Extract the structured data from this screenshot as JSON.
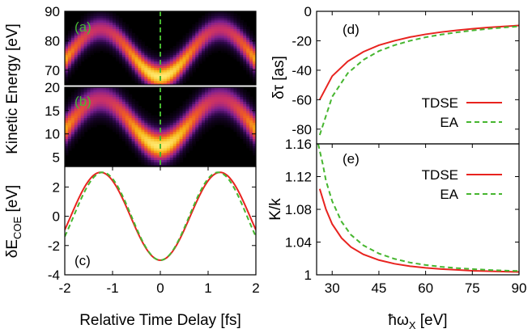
{
  "chart_data": [
    {
      "id": "a",
      "type": "heatmap",
      "panel_label": "(a)",
      "xlim": [
        -2,
        2
      ],
      "ylim": [
        65,
        90
      ],
      "yticks": [
        70,
        80,
        90
      ],
      "ylabel": "Kinetic Energy [eV]",
      "ridge": {
        "center_energy": 76,
        "amplitude": 8,
        "period_fs": 2.5,
        "phase_min_at_fs": 0
      },
      "marker_line_x": 0,
      "colormap": [
        "#000000",
        "#2a0846",
        "#7a1f8e",
        "#c8306a",
        "#ee5a24",
        "#f6b316",
        "#ffea70"
      ]
    },
    {
      "id": "b",
      "type": "heatmap",
      "panel_label": "(b)",
      "xlim": [
        -2,
        2
      ],
      "ylim": [
        3,
        20
      ],
      "yticks": [
        5,
        10,
        15,
        20
      ],
      "ridge": {
        "center_energy": 12.5,
        "amplitude": 5,
        "period_fs": 2.5,
        "phase_min_at_fs": 0
      },
      "marker_line_x": 0
    },
    {
      "id": "c",
      "type": "line",
      "panel_label": "(c)",
      "xlim": [
        -2,
        2
      ],
      "ylim": [
        -4,
        3.4
      ],
      "xticks": [
        -2,
        -1,
        0,
        1,
        2
      ],
      "yticks": [
        -4,
        -2,
        0,
        2
      ],
      "xlabel": "Relative Time Delay [fs]",
      "ylabel_main": "δE",
      "ylabel_sub": "COE",
      "ylabel_unit": " [eV]",
      "series": [
        {
          "style": "solid",
          "color": "#e8231f",
          "amplitude": 3.0,
          "period_fs": 2.5
        },
        {
          "style": "dashed",
          "color": "#46b62f",
          "amplitude": 3.0,
          "period_fs": 2.42
        }
      ]
    },
    {
      "id": "d",
      "type": "line",
      "panel_label": "(d)",
      "xlim": [
        25,
        90
      ],
      "ylim": [
        -90,
        0
      ],
      "yticks": [
        -80,
        -60,
        -40,
        -20,
        0
      ],
      "ylabel": "δτ [as]",
      "series": [
        {
          "name": "TDSE",
          "style": "solid",
          "color": "#e8231f",
          "x": [
            26,
            30,
            35,
            40,
            45,
            50,
            55,
            60,
            65,
            70,
            75,
            80,
            85,
            90
          ],
          "y": [
            -60,
            -44,
            -34,
            -27.5,
            -23,
            -20,
            -17.5,
            -15.6,
            -14.1,
            -12.9,
            -11.9,
            -11,
            -10.3,
            -9.6
          ]
        },
        {
          "name": "EA",
          "style": "dashed",
          "color": "#46b62f",
          "x": [
            26,
            30,
            35,
            40,
            45,
            50,
            55,
            60,
            65,
            70,
            75,
            80,
            85,
            90
          ],
          "y": [
            -84,
            -58,
            -42,
            -33,
            -27,
            -23,
            -20,
            -17.6,
            -15.8,
            -14.3,
            -13,
            -11.9,
            -11,
            -10.2
          ]
        }
      ]
    },
    {
      "id": "e",
      "type": "line",
      "panel_label": "(e)",
      "xlim": [
        25,
        90
      ],
      "ylim": [
        1,
        1.16
      ],
      "xticks": [
        30,
        45,
        60,
        75,
        90
      ],
      "yticks": [
        1,
        1.04,
        1.08,
        1.12,
        1.16
      ],
      "ytick_labels": [
        "1",
        "1.04",
        "1.08",
        "1.12",
        "1.16"
      ],
      "xlabel_main": "ħω",
      "xlabel_sub": "X",
      "xlabel_unit": " [eV]",
      "ylabel": "K/k",
      "series": [
        {
          "name": "TDSE",
          "style": "solid",
          "color": "#e8231f",
          "x": [
            26,
            28,
            30,
            33,
            36,
            40,
            45,
            50,
            55,
            60,
            65,
            70,
            75,
            80,
            85,
            90
          ],
          "y": [
            1.105,
            1.08,
            1.062,
            1.045,
            1.034,
            1.025,
            1.018,
            1.0135,
            1.0105,
            1.0085,
            1.007,
            1.006,
            1.005,
            1.0045,
            1.004,
            1.0035
          ]
        },
        {
          "name": "EA",
          "style": "dashed",
          "color": "#46b62f",
          "x": [
            25.5,
            27,
            28,
            30,
            33,
            36,
            40,
            45,
            50,
            55,
            60,
            65,
            70,
            75,
            80,
            85,
            90
          ],
          "y": [
            1.16,
            1.135,
            1.115,
            1.09,
            1.065,
            1.049,
            1.036,
            1.026,
            1.0195,
            1.015,
            1.012,
            1.0098,
            1.0082,
            1.007,
            1.006,
            1.0052,
            1.0046
          ]
        }
      ]
    }
  ]
}
